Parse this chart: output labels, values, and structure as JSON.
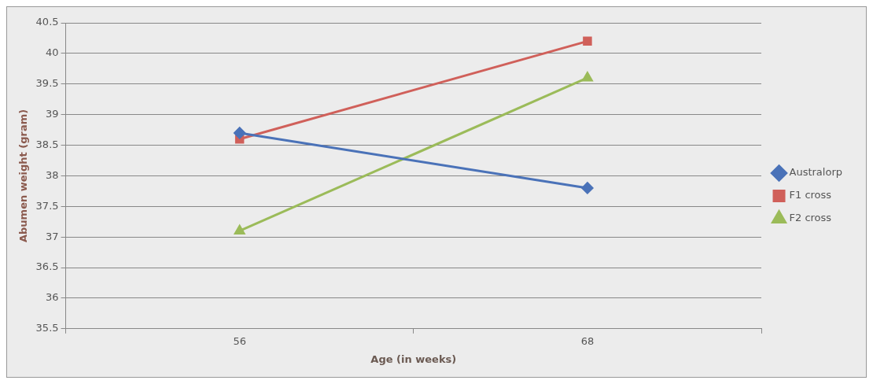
{
  "chart_data": {
    "type": "line",
    "xlabel": "Age (in weeks)",
    "ylabel": "Abumen weight (gram)",
    "categories": [
      "56",
      "68"
    ],
    "series": [
      {
        "name": "Australorp",
        "color": "#4a72b8",
        "values": [
          38.7,
          37.8
        ],
        "marker": "diamond"
      },
      {
        "name": "F1 cross",
        "color": "#d0605a",
        "values": [
          38.6,
          40.2
        ],
        "marker": "square"
      },
      {
        "name": "F2 cross",
        "color": "#9bbb59",
        "values": [
          37.1,
          39.6
        ],
        "marker": "triangle"
      }
    ],
    "ylim": [
      35.5,
      40.5
    ],
    "yticks": [
      35.5,
      36,
      36.5,
      37,
      37.5,
      38,
      38.5,
      39,
      39.5,
      40,
      40.5
    ],
    "grid": "y",
    "legend": "right"
  }
}
